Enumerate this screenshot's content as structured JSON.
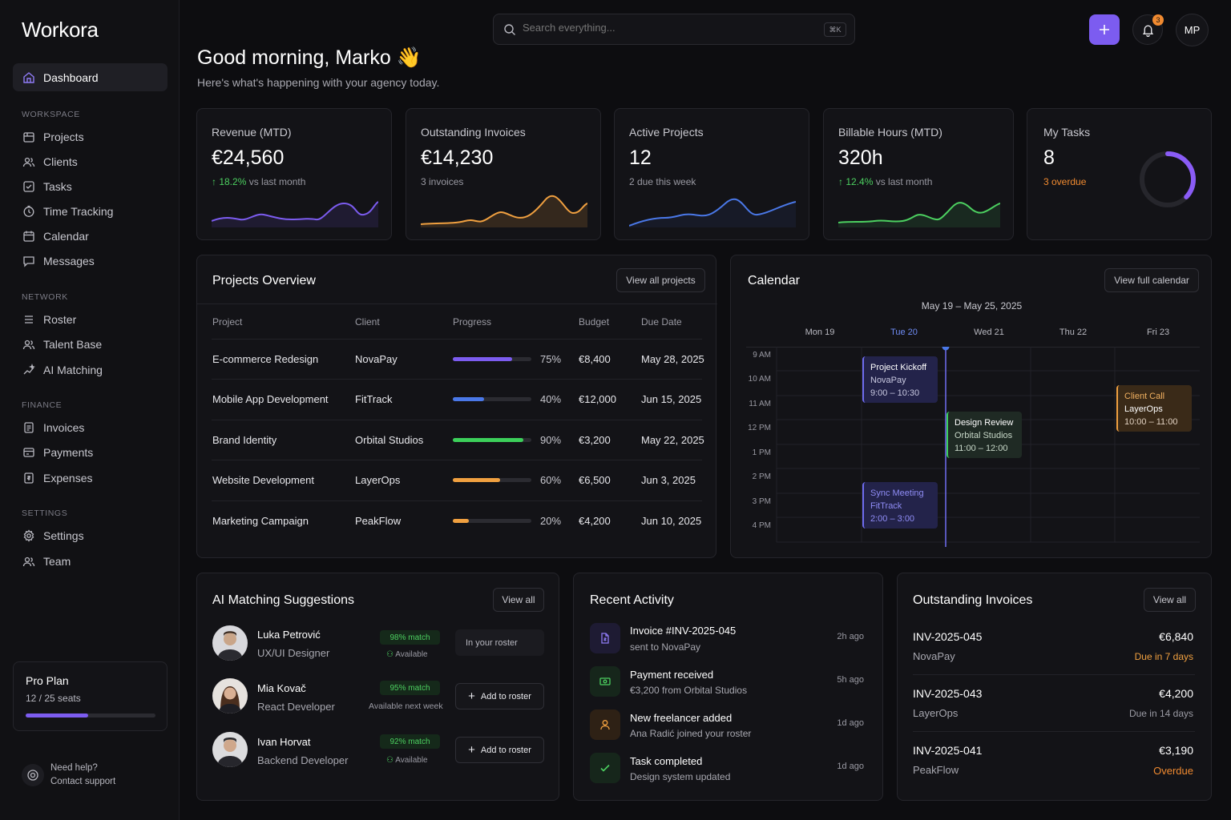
{
  "app": {
    "name": "Workora"
  },
  "nav": {
    "dashboard": "Dashboard",
    "sections": [
      {
        "label": "WORKSPACE",
        "items": [
          "Projects",
          "Clients",
          "Tasks",
          "Time Tracking",
          "Calendar",
          "Messages"
        ]
      },
      {
        "label": "NETWORK",
        "items": [
          "Roster",
          "Talent Base",
          "AI Matching"
        ]
      },
      {
        "label": "FINANCE",
        "items": [
          "Invoices",
          "Payments",
          "Expenses"
        ]
      },
      {
        "label": "SETTINGS",
        "items": [
          "Settings",
          "Team"
        ]
      }
    ]
  },
  "plan": {
    "name": "Pro Plan",
    "seats": "12 / 25 seats",
    "usage_fraction": 0.48
  },
  "help": {
    "title": "Need help?",
    "link": "Contact support"
  },
  "topbar": {
    "search_placeholder": "Search everything...",
    "shortcut": "⌘K",
    "notifications": "3",
    "user_initials": "MP"
  },
  "greeting": {
    "title": "Good morning, Marko 👋",
    "subtitle": "Here's what's happening with your agency today."
  },
  "stats": [
    {
      "label": "Revenue (MTD)",
      "value": "€24,560",
      "trend": "↑ 18.2%",
      "sub": " vs last month",
      "color": "#7c5cf0"
    },
    {
      "label": "Outstanding Invoices",
      "value": "€14,230",
      "sub": "3 invoices",
      "color": "#f0a040"
    },
    {
      "label": "Active Projects",
      "value": "12",
      "sub": "2 due this week",
      "color": "#4a78e8"
    },
    {
      "label": "Billable Hours (MTD)",
      "value": "320h",
      "trend": "↑ 12.4%",
      "sub": " vs last month",
      "color": "#4cd060"
    },
    {
      "label": "My Tasks",
      "value": "8",
      "sub": "3 overdue",
      "color": "#8a5cf6",
      "ring_fraction": 0.37
    }
  ],
  "projects": {
    "title": "Projects Overview",
    "view_all": "View all projects",
    "columns": [
      "Project",
      "Client",
      "Progress",
      "Budget",
      "Due Date"
    ],
    "rows": [
      {
        "name": "E-commerce Redesign",
        "client": "NovaPay",
        "progress": "75%",
        "pct": 0.75,
        "color": "#7c5cf0",
        "budget": "€8,400",
        "due": "May 28, 2025"
      },
      {
        "name": "Mobile App Development",
        "client": "FitTrack",
        "progress": "40%",
        "pct": 0.4,
        "color": "#4a78e8",
        "budget": "€12,000",
        "due": "Jun 15, 2025"
      },
      {
        "name": "Brand Identity",
        "client": "Orbital Studios",
        "progress": "90%",
        "pct": 0.9,
        "color": "#3ccf5a",
        "budget": "€3,200",
        "due": "May 22, 2025"
      },
      {
        "name": "Website Development",
        "client": "LayerOps",
        "progress": "60%",
        "pct": 0.6,
        "color": "#f0a040",
        "budget": "€6,500",
        "due": "Jun 3, 2025"
      },
      {
        "name": "Marketing Campaign",
        "client": "PeakFlow",
        "progress": "20%",
        "pct": 0.2,
        "color": "#f0a040",
        "budget": "€4,200",
        "due": "Jun 10, 2025"
      }
    ]
  },
  "calendar": {
    "title": "Calendar",
    "view_all": "View full calendar",
    "range": "May 19 – May 25, 2025",
    "days": [
      "Mon 19",
      "Tue 20",
      "Wed 21",
      "Thu 22",
      "Fri 23"
    ],
    "times": [
      "9 AM",
      "10 AM",
      "11 AM",
      "12 PM",
      "1 PM",
      "2 PM",
      "3 PM",
      "4 PM"
    ],
    "events": [
      {
        "title": "Project Kickoff",
        "client": "NovaPay",
        "time": "9:00 – 10:30"
      },
      {
        "title": "Design Review",
        "client": "Orbital Studios",
        "time": "11:00 – 12:00"
      },
      {
        "title": "Client Call",
        "client": "LayerOps",
        "time": "10:00 – 11:00"
      },
      {
        "title": "Sync Meeting",
        "client": "FitTrack",
        "time": "2:00 – 3:00"
      }
    ]
  },
  "matching": {
    "title": "AI Matching Suggestions",
    "view_all": "View all",
    "people": [
      {
        "name": "Luka Petrović",
        "role": "UX/UI Designer",
        "match": "98% match",
        "avail": "Available",
        "action": "In your roster"
      },
      {
        "name": "Mia Kovač",
        "role": "React Developer",
        "match": "95% match",
        "avail": "Available next week",
        "action": "Add to roster"
      },
      {
        "name": "Ivan Horvat",
        "role": "Backend Developer",
        "match": "92% match",
        "avail": "Available",
        "action": "Add to roster"
      }
    ]
  },
  "activity": {
    "title": "Recent Activity",
    "items": [
      {
        "title": "Invoice #INV-2025-045",
        "sub": "sent to NovaPay",
        "time": "2h ago"
      },
      {
        "title": "Payment received",
        "sub": "€3,200 from Orbital Studios",
        "time": "5h ago"
      },
      {
        "title": "New freelancer added",
        "sub": "Ana Radić joined your roster",
        "time": "1d ago"
      },
      {
        "title": "Task completed",
        "sub": "Design system updated",
        "time": "1d ago"
      }
    ]
  },
  "invoices": {
    "title": "Outstanding Invoices",
    "view_all": "View all",
    "items": [
      {
        "id": "INV-2025-045",
        "client": "NovaPay",
        "amount": "€6,840",
        "status": "Due in 7 days",
        "color": "#f0a040"
      },
      {
        "id": "INV-2025-043",
        "client": "LayerOps",
        "amount": "€4,200",
        "status": "Due in 14 days",
        "color": "#9a9aa3"
      },
      {
        "id": "INV-2025-041",
        "client": "PeakFlow",
        "amount": "€3,190",
        "status": "Overdue",
        "color": "#f08a30"
      }
    ]
  }
}
